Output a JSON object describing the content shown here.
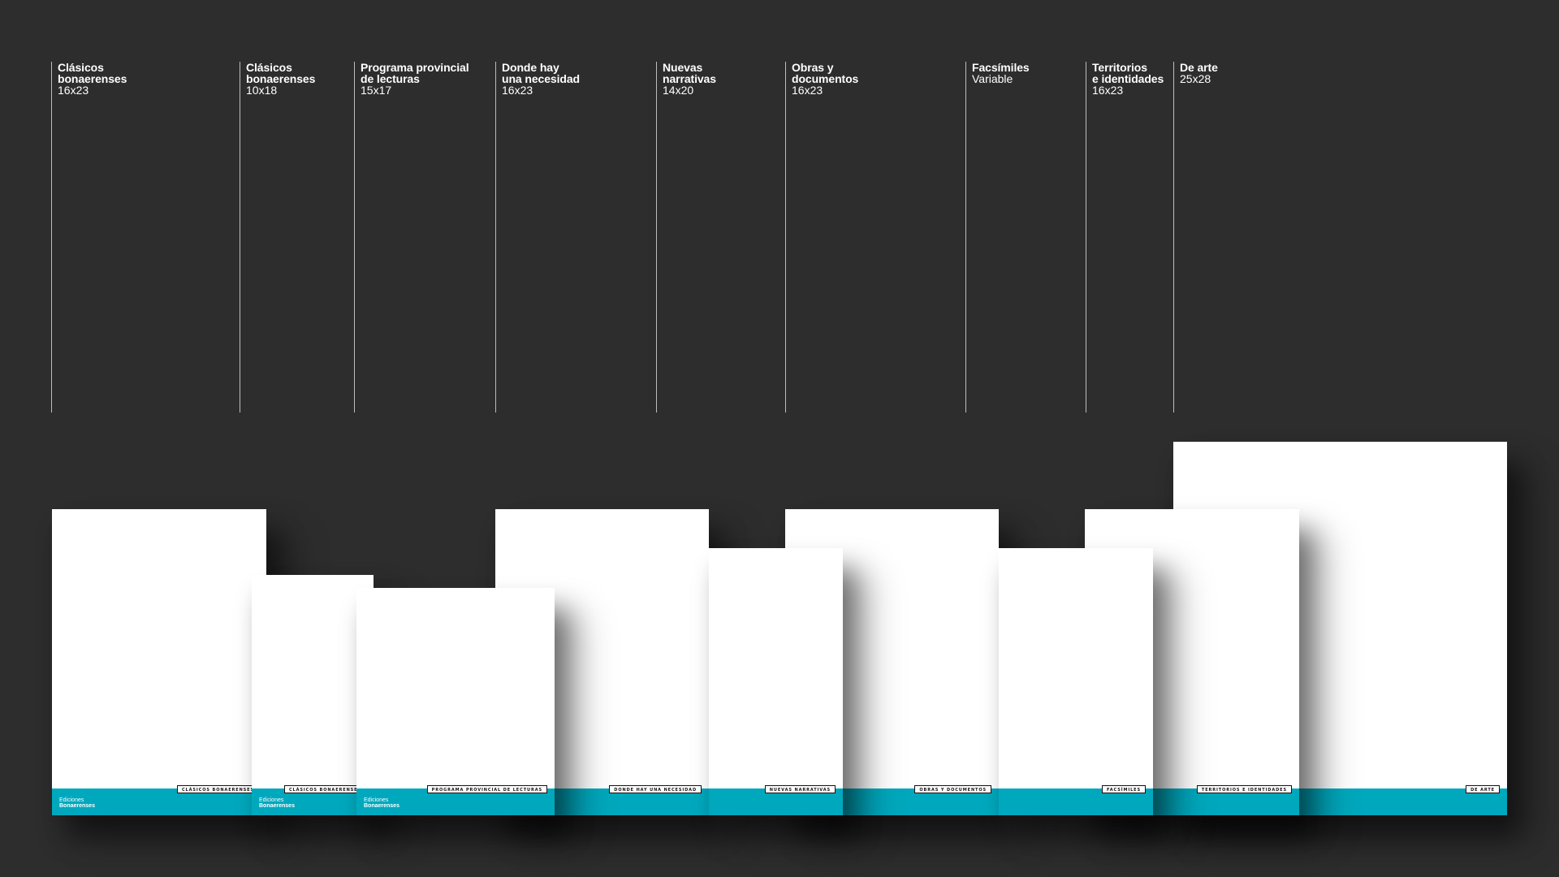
{
  "collections": [
    {
      "name": "Clásicos\nbonaerenses",
      "size": "16x23"
    },
    {
      "name": "Clásicos\nbonaerenses",
      "size": "10x18"
    },
    {
      "name": "Programa provincial\nde lecturas",
      "size": "15x17"
    },
    {
      "name": "Donde hay\nuna necesidad",
      "size": "16x23"
    },
    {
      "name": "Nuevas\nnarrativas",
      "size": "14x20"
    },
    {
      "name": "Obras y\ndocumentos",
      "size": "16x23"
    },
    {
      "name": "Facsímiles",
      "size": "Variable"
    },
    {
      "name": "Territorios\ne identidades",
      "size": "16x23"
    },
    {
      "name": "De arte",
      "size": "25x28"
    }
  ],
  "books": [
    {
      "tag": "CLÁSICOS BONAERENSES",
      "logo_top": "Ediciones",
      "logo_bottom": "Bonaerenses"
    },
    {
      "tag": "CLÁSICOS BONAERENSES",
      "logo_top": "Ediciones",
      "logo_bottom": "Bonaerenses"
    },
    {
      "tag": "PROGRAMA PROVINCIAL DE LECTURAS",
      "logo_top": "Ediciones",
      "logo_bottom": "Bonaerenses"
    },
    {
      "tag": "DONDE HAY UNA NECESIDAD"
    },
    {
      "tag": "NUEVAS NARRATIVAS"
    },
    {
      "tag": "OBRAS Y DOCUMENTOS"
    },
    {
      "tag": "FACSÍMILES"
    },
    {
      "tag": "TERRITORIOS E IDENTIDADES"
    },
    {
      "tag": "DE ARTE"
    }
  ],
  "colors": {
    "background": "#2d2d2d",
    "cover": "#ffffff",
    "band": "#00a8bd"
  }
}
